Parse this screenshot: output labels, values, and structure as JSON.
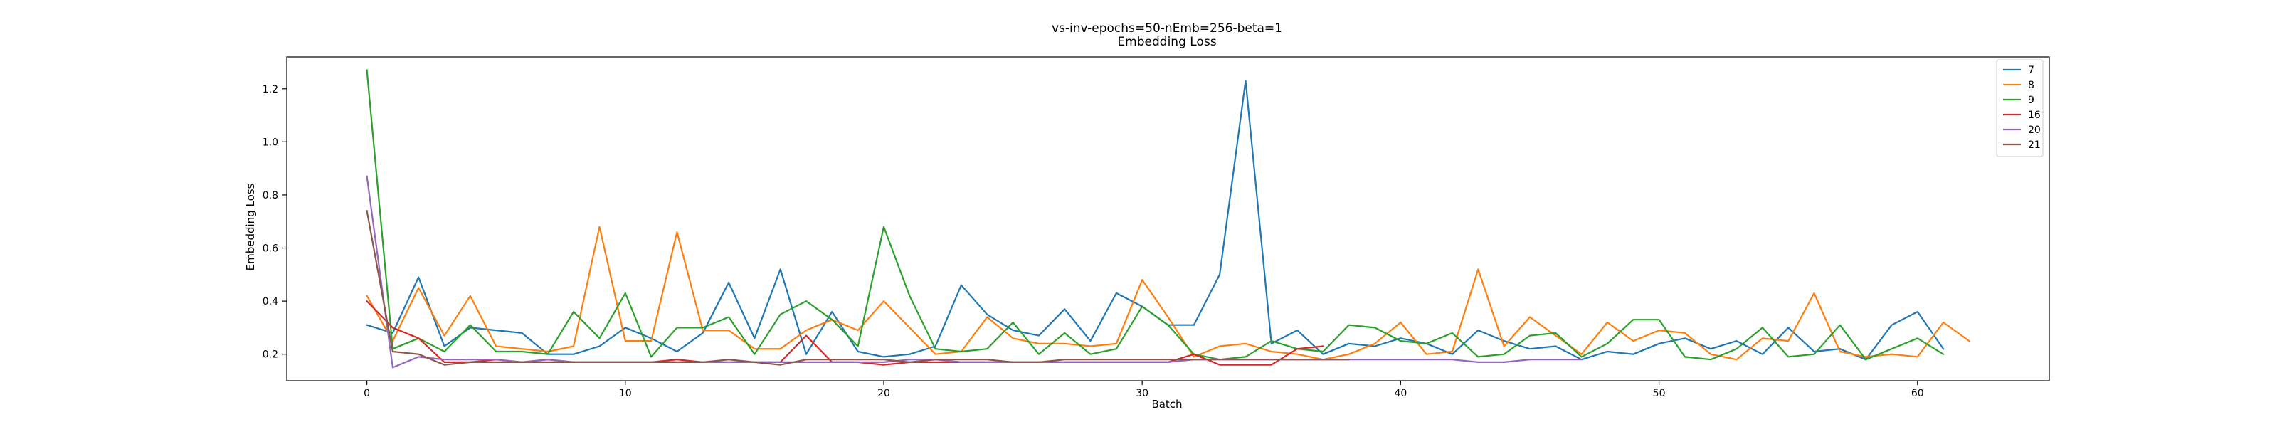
{
  "chart_data": {
    "type": "line",
    "title": "vs-inv-epochs=50-nEmb=256-beta=1",
    "subtitle": "Embedding Loss",
    "xlabel": "Batch",
    "ylabel": "Embedding Loss",
    "xlim": [
      -3.1,
      65.1
    ],
    "ylim": [
      0.1,
      1.32
    ],
    "xticks": [
      0,
      10,
      20,
      30,
      40,
      50,
      60
    ],
    "yticks": [
      0.2,
      0.4,
      0.6,
      0.8,
      1.0,
      1.2
    ],
    "ytick_labels": [
      "0.2",
      "0.4",
      "0.6",
      "0.8",
      "1.0",
      "1.2"
    ],
    "grid": false,
    "legend_position": "top-right",
    "series": [
      {
        "name": "7",
        "color": "#1f77b4",
        "values": [
          0.31,
          0.28,
          0.49,
          0.23,
          0.3,
          0.29,
          0.28,
          0.2,
          0.2,
          0.23,
          0.3,
          0.26,
          0.21,
          0.28,
          0.47,
          0.26,
          0.52,
          0.2,
          0.36,
          0.21,
          0.19,
          0.2,
          0.23,
          0.46,
          0.35,
          0.29,
          0.27,
          0.37,
          0.25,
          0.43,
          0.38,
          0.31,
          0.31,
          0.5,
          1.23,
          0.24,
          0.29,
          0.2,
          0.24,
          0.23,
          0.26,
          0.24,
          0.2,
          0.29,
          0.25,
          0.22,
          0.23,
          0.18,
          0.21,
          0.2,
          0.24,
          0.26,
          0.22,
          0.25,
          0.2,
          0.3,
          0.21,
          0.22,
          0.18,
          0.31,
          0.36,
          0.22
        ]
      },
      {
        "name": "8",
        "color": "#ff7f0e",
        "values": [
          0.42,
          0.25,
          0.45,
          0.27,
          0.42,
          0.23,
          0.22,
          0.21,
          0.23,
          0.68,
          0.25,
          0.25,
          0.66,
          0.29,
          0.29,
          0.22,
          0.22,
          0.29,
          0.33,
          0.29,
          0.4,
          0.3,
          0.2,
          0.21,
          0.34,
          0.26,
          0.24,
          0.24,
          0.23,
          0.24,
          0.48,
          0.34,
          0.19,
          0.23,
          0.24,
          0.21,
          0.2,
          0.18,
          0.2,
          0.24,
          0.32,
          0.2,
          0.21,
          0.52,
          0.23,
          0.34,
          0.27,
          0.2,
          0.32,
          0.25,
          0.29,
          0.28,
          0.2,
          0.18,
          0.26,
          0.25,
          0.43,
          0.21,
          0.19,
          0.2,
          0.19,
          0.32,
          0.25
        ]
      },
      {
        "name": "9",
        "color": "#2ca02c",
        "values": [
          1.27,
          0.22,
          0.26,
          0.21,
          0.31,
          0.21,
          0.21,
          0.2,
          0.36,
          0.26,
          0.43,
          0.19,
          0.3,
          0.3,
          0.34,
          0.2,
          0.35,
          0.4,
          0.33,
          0.23,
          0.68,
          0.42,
          0.22,
          0.21,
          0.22,
          0.32,
          0.2,
          0.28,
          0.2,
          0.22,
          0.38,
          0.31,
          0.2,
          0.18,
          0.19,
          0.25,
          0.22,
          0.21,
          0.31,
          0.3,
          0.25,
          0.24,
          0.28,
          0.19,
          0.2,
          0.27,
          0.28,
          0.19,
          0.24,
          0.33,
          0.33,
          0.19,
          0.18,
          0.22,
          0.3,
          0.19,
          0.2,
          0.31,
          0.18,
          0.22,
          0.26,
          0.2
        ]
      },
      {
        "name": "16",
        "color": "#d62728",
        "values": [
          0.4,
          0.3,
          0.26,
          0.17,
          0.17,
          0.18,
          0.17,
          0.18,
          0.17,
          0.17,
          0.17,
          0.17,
          0.18,
          0.17,
          0.17,
          0.17,
          0.17,
          0.27,
          0.17,
          0.17,
          0.16,
          0.17,
          0.17,
          0.17,
          0.17,
          0.17,
          0.17,
          0.17,
          0.17,
          0.17,
          0.17,
          0.17,
          0.2,
          0.16,
          0.16,
          0.16,
          0.22,
          0.23
        ]
      },
      {
        "name": "20",
        "color": "#9467bd",
        "values": [
          0.87,
          0.15,
          0.19,
          0.18,
          0.18,
          0.18,
          0.17,
          0.18,
          0.17,
          0.17,
          0.17,
          0.17,
          0.17,
          0.17,
          0.17,
          0.17,
          0.17,
          0.17,
          0.17,
          0.17,
          0.17,
          0.18,
          0.18,
          0.17,
          0.17,
          0.17,
          0.17,
          0.17,
          0.17,
          0.17,
          0.17,
          0.17,
          0.18,
          0.18,
          0.18,
          0.18,
          0.18,
          0.18,
          0.18,
          0.18,
          0.18,
          0.18,
          0.18,
          0.17,
          0.17,
          0.18,
          0.18,
          0.18
        ]
      },
      {
        "name": "21",
        "color": "#8c564b",
        "values": [
          0.74,
          0.21,
          0.2,
          0.16,
          0.17,
          0.17,
          0.17,
          0.17,
          0.17,
          0.17,
          0.17,
          0.17,
          0.17,
          0.17,
          0.18,
          0.17,
          0.16,
          0.18,
          0.18,
          0.18,
          0.18,
          0.17,
          0.18,
          0.18,
          0.18,
          0.17,
          0.17,
          0.18,
          0.18,
          0.18,
          0.18,
          0.18,
          0.18,
          0.18,
          0.18,
          0.18,
          0.18,
          0.18,
          0.18
        ]
      }
    ]
  }
}
